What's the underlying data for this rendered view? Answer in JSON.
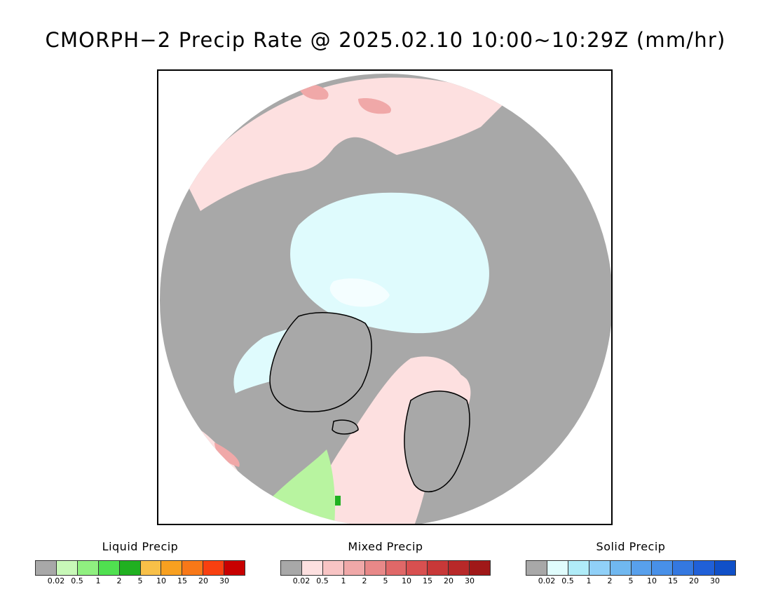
{
  "title": "CMORPH−2 Precip Rate @ 2025.02.10 10:00~10:29Z (mm/hr)",
  "map": {
    "projection": "north polar stereographic",
    "colors": {
      "no_precip": "#a8a8a8",
      "ocean_mixed_light": "#fde0e0",
      "ice_solid_light": "#dffbfd",
      "mixed_moderate": "#f0a8a8",
      "liquid_light": "#b8f4a0",
      "liquid_heavy": "#20b020",
      "coastline": "#000000"
    }
  },
  "legends": [
    {
      "title": "Liquid Precip",
      "ticks": [
        "0.02",
        "0.5",
        "1",
        "2",
        "5",
        "10",
        "15",
        "20",
        "30"
      ],
      "colors": [
        "#a8a8a8",
        "#c8f8b8",
        "#90f080",
        "#50e050",
        "#20b020",
        "#f8c048",
        "#f8a020",
        "#f87818",
        "#f84010",
        "#c80000"
      ]
    },
    {
      "title": "Mixed Precip",
      "ticks": [
        "0.02",
        "0.5",
        "1",
        "2",
        "5",
        "10",
        "15",
        "20",
        "30"
      ],
      "colors": [
        "#a8a8a8",
        "#fde0e0",
        "#f8c4c4",
        "#f0a8a8",
        "#e88888",
        "#e06868",
        "#d85050",
        "#c83838",
        "#b82828",
        "#a01818"
      ]
    },
    {
      "title": "Solid Precip",
      "ticks": [
        "0.02",
        "0.5",
        "1",
        "2",
        "5",
        "10",
        "15",
        "20",
        "30"
      ],
      "colors": [
        "#a8a8a8",
        "#e0fcfc",
        "#b0ecf8",
        "#90d0f8",
        "#70b8f0",
        "#58a0ec",
        "#4890e8",
        "#3478e0",
        "#2060d8",
        "#1050c8"
      ]
    }
  ]
}
